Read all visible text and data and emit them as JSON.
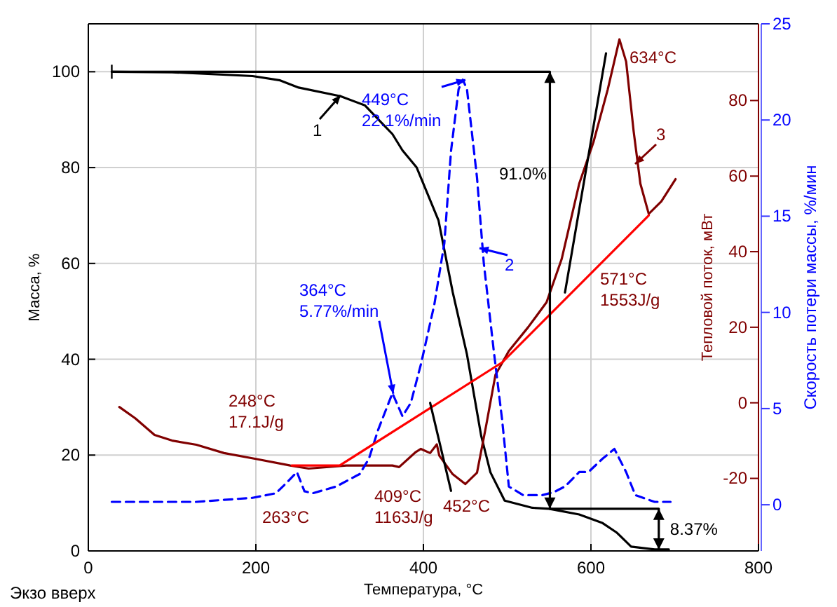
{
  "chart_data": {
    "type": "line",
    "xlabel": "Температура, °C",
    "ylabel": "Масса, %",
    "y2label": "Тепловой поток, мВт",
    "y3label": "Скорость потери массы, %/мин",
    "xlim": [
      0,
      800
    ],
    "xticks": [
      0,
      200,
      400,
      600,
      800
    ],
    "ylim": [
      0,
      110
    ],
    "yticks": [
      0,
      20,
      40,
      60,
      80,
      100
    ],
    "y2lim": [
      -39.2,
      100.3
    ],
    "y2ticks": [
      -20,
      0,
      20,
      40,
      60,
      80
    ],
    "y3lim": [
      -2.4,
      25
    ],
    "y3ticks": [
      0,
      5,
      10,
      15,
      20,
      25
    ],
    "grid": true,
    "marker": "none",
    "series": [
      {
        "color": "#000000",
        "x": [
          28,
          100,
          196,
          229,
          251,
          301,
          330,
          352,
          363,
          375,
          392,
          418,
          435,
          452,
          469,
          480,
          497,
          530,
          550,
          586,
          614,
          631,
          648,
          676,
          693
        ],
        "values": [
          100,
          99.9,
          99.1,
          98.2,
          96.7,
          94.9,
          93,
          89,
          87,
          83.6,
          80,
          69,
          54,
          41,
          24,
          16.4,
          10.5,
          9,
          8.8,
          7.6,
          5.8,
          3.8,
          0.9,
          0.3,
          0.3
        ]
      },
      {
        "axis": "y2",
        "color": "#800000",
        "x": [
          37,
          56,
          79,
          100,
          129,
          162,
          199,
          241,
          263,
          308,
          363,
          371,
          391,
          397,
          408,
          416,
          419,
          435,
          450,
          464,
          475,
          486,
          502,
          525,
          547,
          565,
          586,
          603,
          620,
          634,
          642,
          651,
          659,
          669,
          684,
          701
        ],
        "values": [
          -1.1,
          -4.1,
          -8.5,
          -10,
          -11.1,
          -13.3,
          -14.8,
          -16.6,
          -17.4,
          -16.6,
          -16.6,
          -17,
          -13,
          -12.2,
          -13.3,
          -11,
          -14,
          -18.9,
          -21.5,
          -18.5,
          -5.9,
          7.4,
          13.7,
          20,
          26.6,
          38,
          58,
          69,
          82.9,
          96.2,
          90.3,
          71.8,
          58,
          50,
          53.3,
          59.2
        ]
      },
      {
        "axis": "y3",
        "color": "#0000ff",
        "line_style": "dashed",
        "x": [
          28,
          129,
          196,
          224,
          238,
          249,
          258,
          268,
          296,
          324,
          335,
          346,
          363,
          375,
          385,
          397,
          413,
          425,
          433,
          442,
          447,
          452,
          464,
          472,
          484,
          494,
          502,
          519,
          542,
          556,
          569,
          586,
          597,
          614,
          628,
          642,
          653,
          676,
          695
        ],
        "values": [
          0.15,
          0.15,
          0.36,
          0.6,
          1.2,
          1.7,
          0.7,
          0.6,
          0.95,
          1.6,
          2.4,
          3.9,
          5.8,
          4.6,
          5.3,
          7.3,
          10.4,
          13.6,
          18.4,
          21.6,
          22.1,
          21.6,
          17,
          12.6,
          8,
          4.4,
          0.95,
          0.5,
          0.5,
          0.66,
          0.95,
          1.7,
          1.7,
          2.4,
          2.9,
          1.7,
          0.5,
          0.15,
          0.15
        ]
      },
      {
        "axis": "y2",
        "color": "#ff0000",
        "x": [
          243,
          300,
          494,
          669
        ],
        "values": [
          -16.6,
          -16.6,
          10.7,
          49.6
        ]
      },
      {
        "axis": "y2",
        "color": "#000000",
        "x": [
          408,
          433
        ],
        "values": [
          0,
          -23.3
        ]
      },
      {
        "axis": "y2",
        "color": "#000000",
        "x": [
          569,
          618
        ],
        "values": [
          29.2,
          92.5
        ]
      },
      {
        "color": "#000000",
        "x": [
          28,
          551,
          551
        ],
        "values": [
          100,
          100,
          8.8
        ]
      },
      {
        "color": "#000000",
        "x": [
          551,
          681,
          681
        ],
        "values": [
          8.8,
          8.8,
          0.3
        ]
      }
    ],
    "annotations": [
      "1",
      "449°C\n22.1%/min",
      {
        "text": "364°C\n5.77%/min",
        "x": 364,
        "y": 32.8
      },
      "2",
      "3",
      "634°C",
      "91.0%",
      "571°C\n1553J/g",
      "248°C\n17.1J/g",
      "263°C",
      "409°C\n1163J/g",
      "452°C",
      {
        "text": "8.37%",
        "x": 681,
        "y": 4.5
      },
      "Экзо вверх"
    ]
  }
}
